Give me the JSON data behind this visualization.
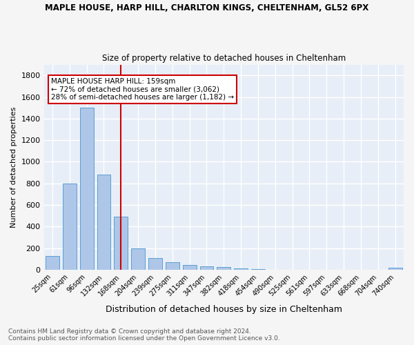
{
  "title": "MAPLE HOUSE, HARP HILL, CHARLTON KINGS, CHELTENHAM, GL52 6PX",
  "subtitle": "Size of property relative to detached houses in Cheltenham",
  "xlabel": "Distribution of detached houses by size in Cheltenham",
  "ylabel": "Number of detached properties",
  "categories": [
    "25sqm",
    "61sqm",
    "96sqm",
    "132sqm",
    "168sqm",
    "204sqm",
    "239sqm",
    "275sqm",
    "311sqm",
    "347sqm",
    "382sqm",
    "418sqm",
    "454sqm",
    "490sqm",
    "525sqm",
    "561sqm",
    "597sqm",
    "633sqm",
    "668sqm",
    "704sqm",
    "740sqm"
  ],
  "values": [
    130,
    800,
    1500,
    880,
    490,
    200,
    110,
    70,
    45,
    30,
    25,
    10,
    5,
    3,
    2,
    2,
    2,
    0,
    0,
    0,
    20
  ],
  "bar_color": "#aec6e8",
  "bar_edge_color": "#5a9fd4",
  "background_color": "#e8eef7",
  "grid_color": "#ffffff",
  "annotation_text": "MAPLE HOUSE HARP HILL: 159sqm\n← 72% of detached houses are smaller (3,062)\n28% of semi-detached houses are larger (1,182) →",
  "vline_x_index": 4,
  "vline_color": "#cc0000",
  "annotation_box_color": "#ffffff",
  "annotation_box_edge": "#cc0000",
  "ylim": [
    0,
    1900
  ],
  "fig_bg": "#f5f5f5",
  "footnote": "Contains HM Land Registry data © Crown copyright and database right 2024.\nContains public sector information licensed under the Open Government Licence v3.0."
}
